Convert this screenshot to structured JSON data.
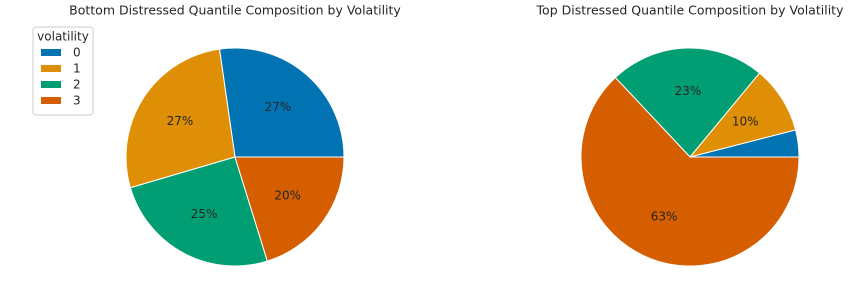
{
  "chart_data": [
    {
      "type": "pie",
      "title": "Bottom Distressed Quantile Composition by Volatility",
      "categories": [
        "0",
        "1",
        "2",
        "3"
      ],
      "values": [
        27,
        27,
        25,
        20
      ],
      "value_labels": [
        "27%",
        "27%",
        "25%",
        "20%"
      ],
      "colors": [
        "#0173b2",
        "#de8f05",
        "#029e73",
        "#d55e00"
      ],
      "legend": {
        "title": "volatility",
        "corner": "upper-left"
      }
    },
    {
      "type": "pie",
      "title": "Top Distressed Quantile Composition by Volatility",
      "values": [
        4,
        10,
        23,
        63
      ],
      "value_labels": [
        null,
        "10%",
        "23%",
        "63%"
      ],
      "colors": [
        "#0173b2",
        "#de8f05",
        "#029e73",
        "#d55e00"
      ]
    }
  ]
}
